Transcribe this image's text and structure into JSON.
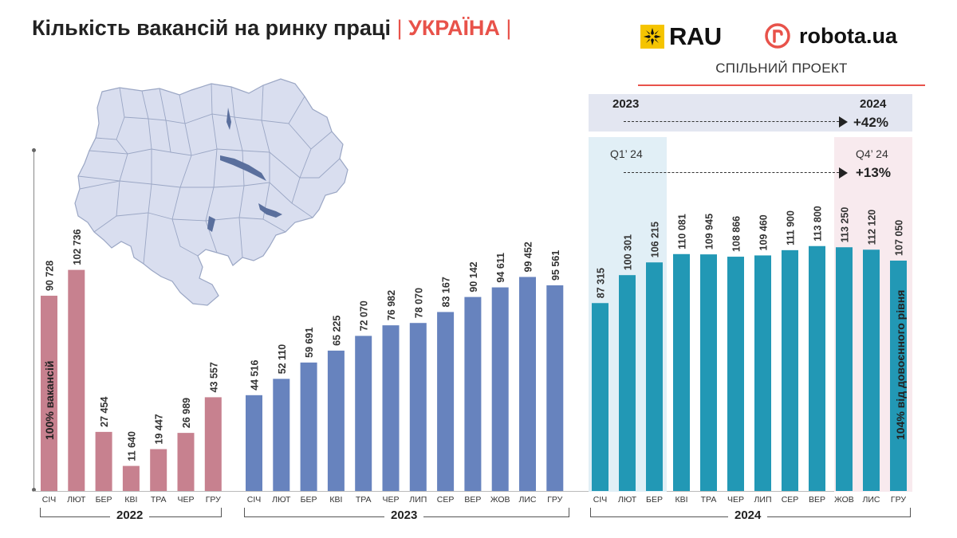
{
  "header": {
    "title_main": "Кількість вакансій на ринку праці",
    "title_sep": "|",
    "title_country": "УКРАЇНА",
    "logo_rau": "RAU",
    "logo_robota": "robota.ua",
    "joint_project": "СПІЛЬНИЙ ПРОЕКТ"
  },
  "annotations": {
    "compare_left": "2023",
    "compare_right": "2024",
    "compare_change": "+42%",
    "q1_label": "Q1’ 24",
    "q4_label": "Q4’ 24",
    "q_change": "+13%",
    "note_2022": "100% вакансій",
    "note_2024": "104% від довоєнного рівня"
  },
  "colors": {
    "y2022": "#c7818f",
    "y2023": "#6783be",
    "y2024": "#2298b5",
    "accent": "#e8524a",
    "map_fill": "#d9deef",
    "map_stroke": "#9aa6c4",
    "water": "#5a6f9d"
  },
  "chart_data": {
    "type": "bar",
    "title": "Кількість вакансій на ринку праці | УКРАЇНА |",
    "xlabel": "",
    "ylabel": "",
    "ylim": [
      0,
      120000
    ],
    "grid": false,
    "series": [
      {
        "name": "2022",
        "categories": [
          "СІЧ",
          "ЛЮТ",
          "БЕР",
          "КВІ",
          "ТРА",
          "ЧЕР",
          "ГРУ"
        ],
        "values": [
          90728,
          102736,
          27454,
          11640,
          19447,
          26989,
          43557
        ],
        "labels": [
          "90 728",
          "102 736",
          "27 454",
          "11 640",
          "19 447",
          "26 989",
          "43 557"
        ]
      },
      {
        "name": "2023",
        "categories": [
          "СІЧ",
          "ЛЮТ",
          "БЕР",
          "КВІ",
          "ТРА",
          "ЧЕР",
          "ЛИП",
          "СЕР",
          "ВЕР",
          "ЖОВ",
          "ЛИС",
          "ГРУ"
        ],
        "values": [
          44516,
          52110,
          59691,
          65225,
          72070,
          76982,
          78070,
          83167,
          90142,
          94611,
          99452,
          95561
        ],
        "labels": [
          "44 516",
          "52 110",
          "59 691",
          "65 225",
          "72 070",
          "76 982",
          "78 070",
          "83 167",
          "90 142",
          "94 611",
          "99 452",
          "95 561"
        ]
      },
      {
        "name": "2024",
        "categories": [
          "СІЧ",
          "ЛЮТ",
          "БЕР",
          "КВІ",
          "ТРА",
          "ЧЕР",
          "ЛИП",
          "СЕР",
          "ВЕР",
          "ЖОВ",
          "ЛИС",
          "ГРУ"
        ],
        "values": [
          87315,
          100301,
          106215,
          110081,
          109945,
          108866,
          109460,
          111900,
          113800,
          113250,
          112120,
          107050
        ],
        "labels": [
          "87 315",
          "100 301",
          "106 215",
          "110 081",
          "109 945",
          "108 866",
          "109 460",
          "111 900",
          "113 800",
          "113 250",
          "112 120",
          "107 050"
        ]
      }
    ]
  }
}
